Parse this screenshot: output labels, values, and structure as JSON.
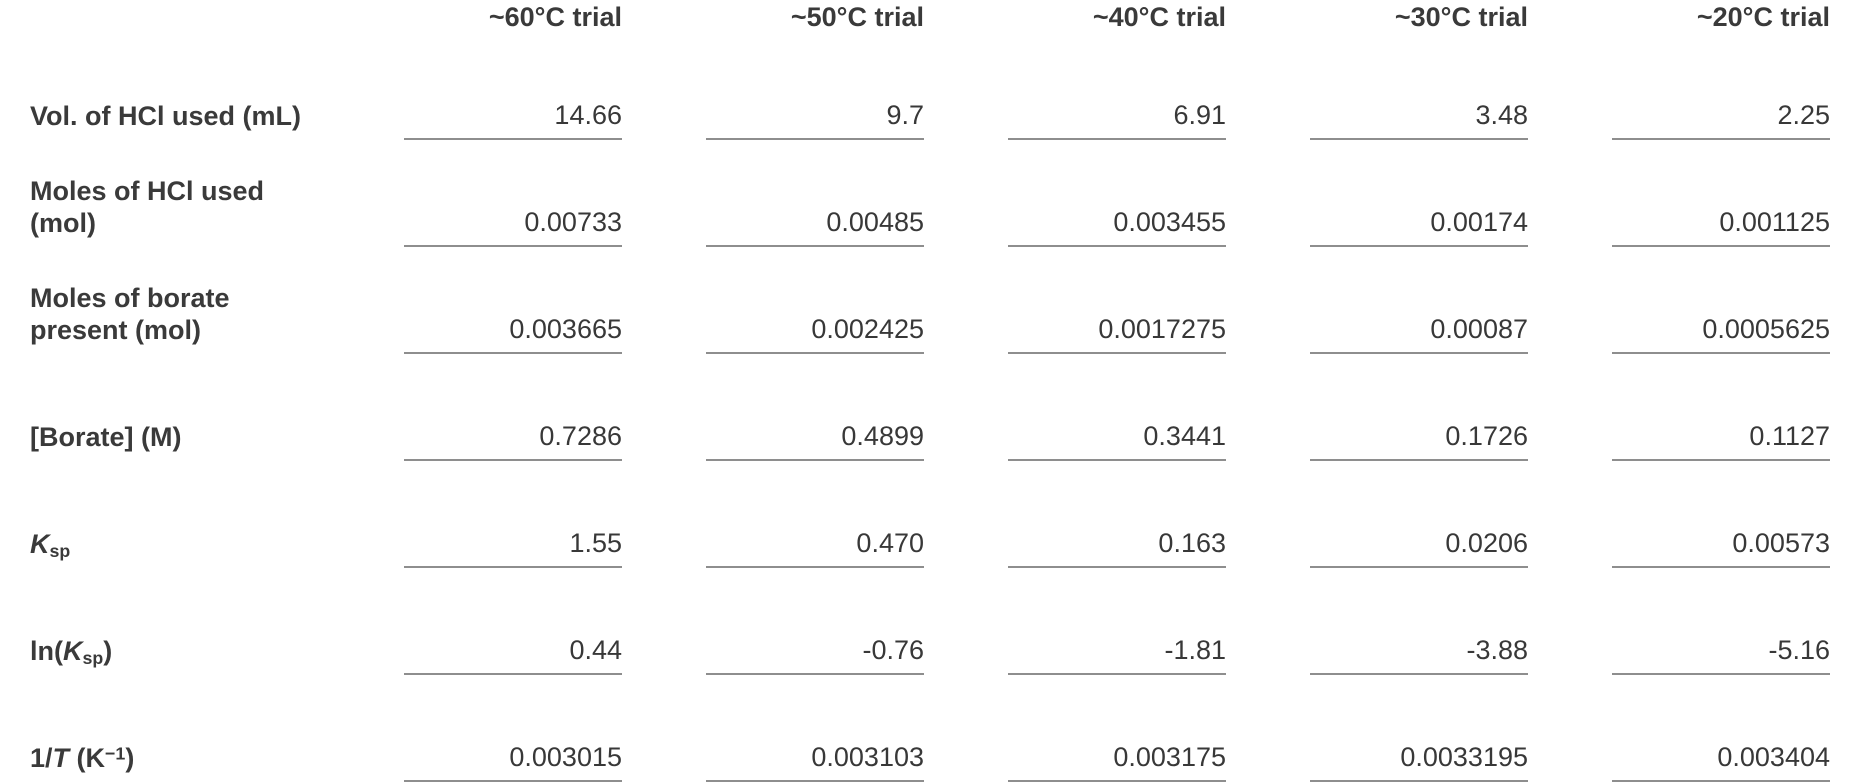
{
  "colors": {
    "text": "#3a3a3a",
    "value_text": "#383838",
    "underline": "#8e8e8e",
    "background": "#ffffff"
  },
  "table": {
    "column_headers": [
      "~60°C trial",
      "~50°C trial",
      "~40°C trial",
      "~30°C trial",
      "~20°C trial"
    ],
    "rows": [
      {
        "label_plain": "Vol. of HCl used (mL)",
        "label_segments": [
          {
            "text": "Vol. of HCl used (mL)"
          }
        ],
        "values": [
          "14.66",
          "9.7",
          "6.91",
          "3.48",
          "2.25"
        ]
      },
      {
        "label_plain": "Moles of HCl used (mol)",
        "label_segments": [
          {
            "text": "Moles of HCl used (mol)"
          }
        ],
        "values": [
          "0.00733",
          "0.00485",
          "0.003455",
          "0.00174",
          "0.001125"
        ]
      },
      {
        "label_plain": "Moles of borate present (mol)",
        "label_segments": [
          {
            "text": "Moles of borate present (mol)"
          }
        ],
        "values": [
          "0.003665",
          "0.002425",
          "0.0017275",
          "0.00087",
          "0.0005625"
        ]
      },
      {
        "label_plain": "[Borate] (M)",
        "label_segments": [
          {
            "text": "[Borate] (M)"
          }
        ],
        "values": [
          "0.7286",
          "0.4899",
          "0.3441",
          "0.1726",
          "0.1127"
        ]
      },
      {
        "label_plain": "Ksp",
        "label_segments": [
          {
            "text": "K",
            "italic": true
          },
          {
            "text": "sp",
            "sub": true
          }
        ],
        "values": [
          "1.55",
          "0.470",
          "0.163",
          "0.0206",
          "0.00573"
        ]
      },
      {
        "label_plain": "ln(Ksp)",
        "label_segments": [
          {
            "text": "ln("
          },
          {
            "text": "K",
            "italic": true
          },
          {
            "text": "sp",
            "sub": true
          },
          {
            "text": ")"
          }
        ],
        "values": [
          "0.44",
          "-0.76",
          "-1.81",
          "-3.88",
          "-5.16"
        ]
      },
      {
        "label_plain": "1/T (K−1)",
        "label_segments": [
          {
            "text": "1/"
          },
          {
            "text": "T",
            "italic": true
          },
          {
            "text": " (K"
          },
          {
            "text": "−1",
            "sup": true
          },
          {
            "text": ")"
          }
        ],
        "values": [
          "0.003015",
          "0.003103",
          "0.003175",
          "0.0033195",
          "0.003404"
        ]
      }
    ]
  }
}
